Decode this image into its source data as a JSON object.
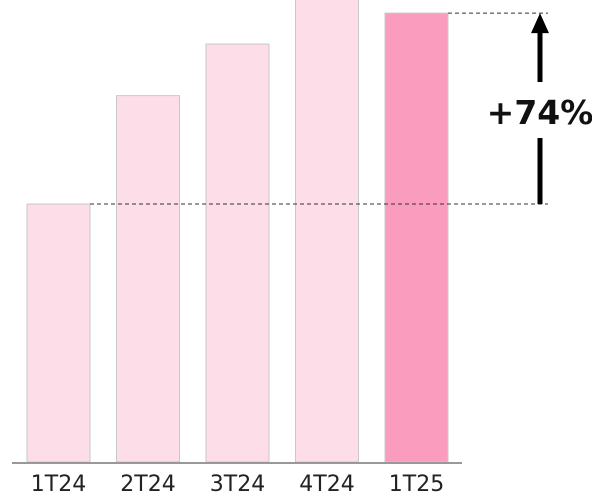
{
  "chart_data": {
    "type": "bar",
    "categories": [
      "1T24",
      "2T24",
      "3T24",
      "4T24",
      "1T25"
    ],
    "values": [
      100,
      142,
      162,
      192,
      174
    ],
    "comparison": {
      "from": "1T24",
      "to": "1T25",
      "label": "+74%"
    },
    "colors": {
      "base": "#fddde8",
      "highlight": "#f99cbd",
      "bar_border": "#c8c8c8",
      "axis": "#999999",
      "reference_line": "#333333",
      "arrow": "#000000"
    },
    "highlight_category": "1T25",
    "grid": false,
    "legend": "none"
  }
}
